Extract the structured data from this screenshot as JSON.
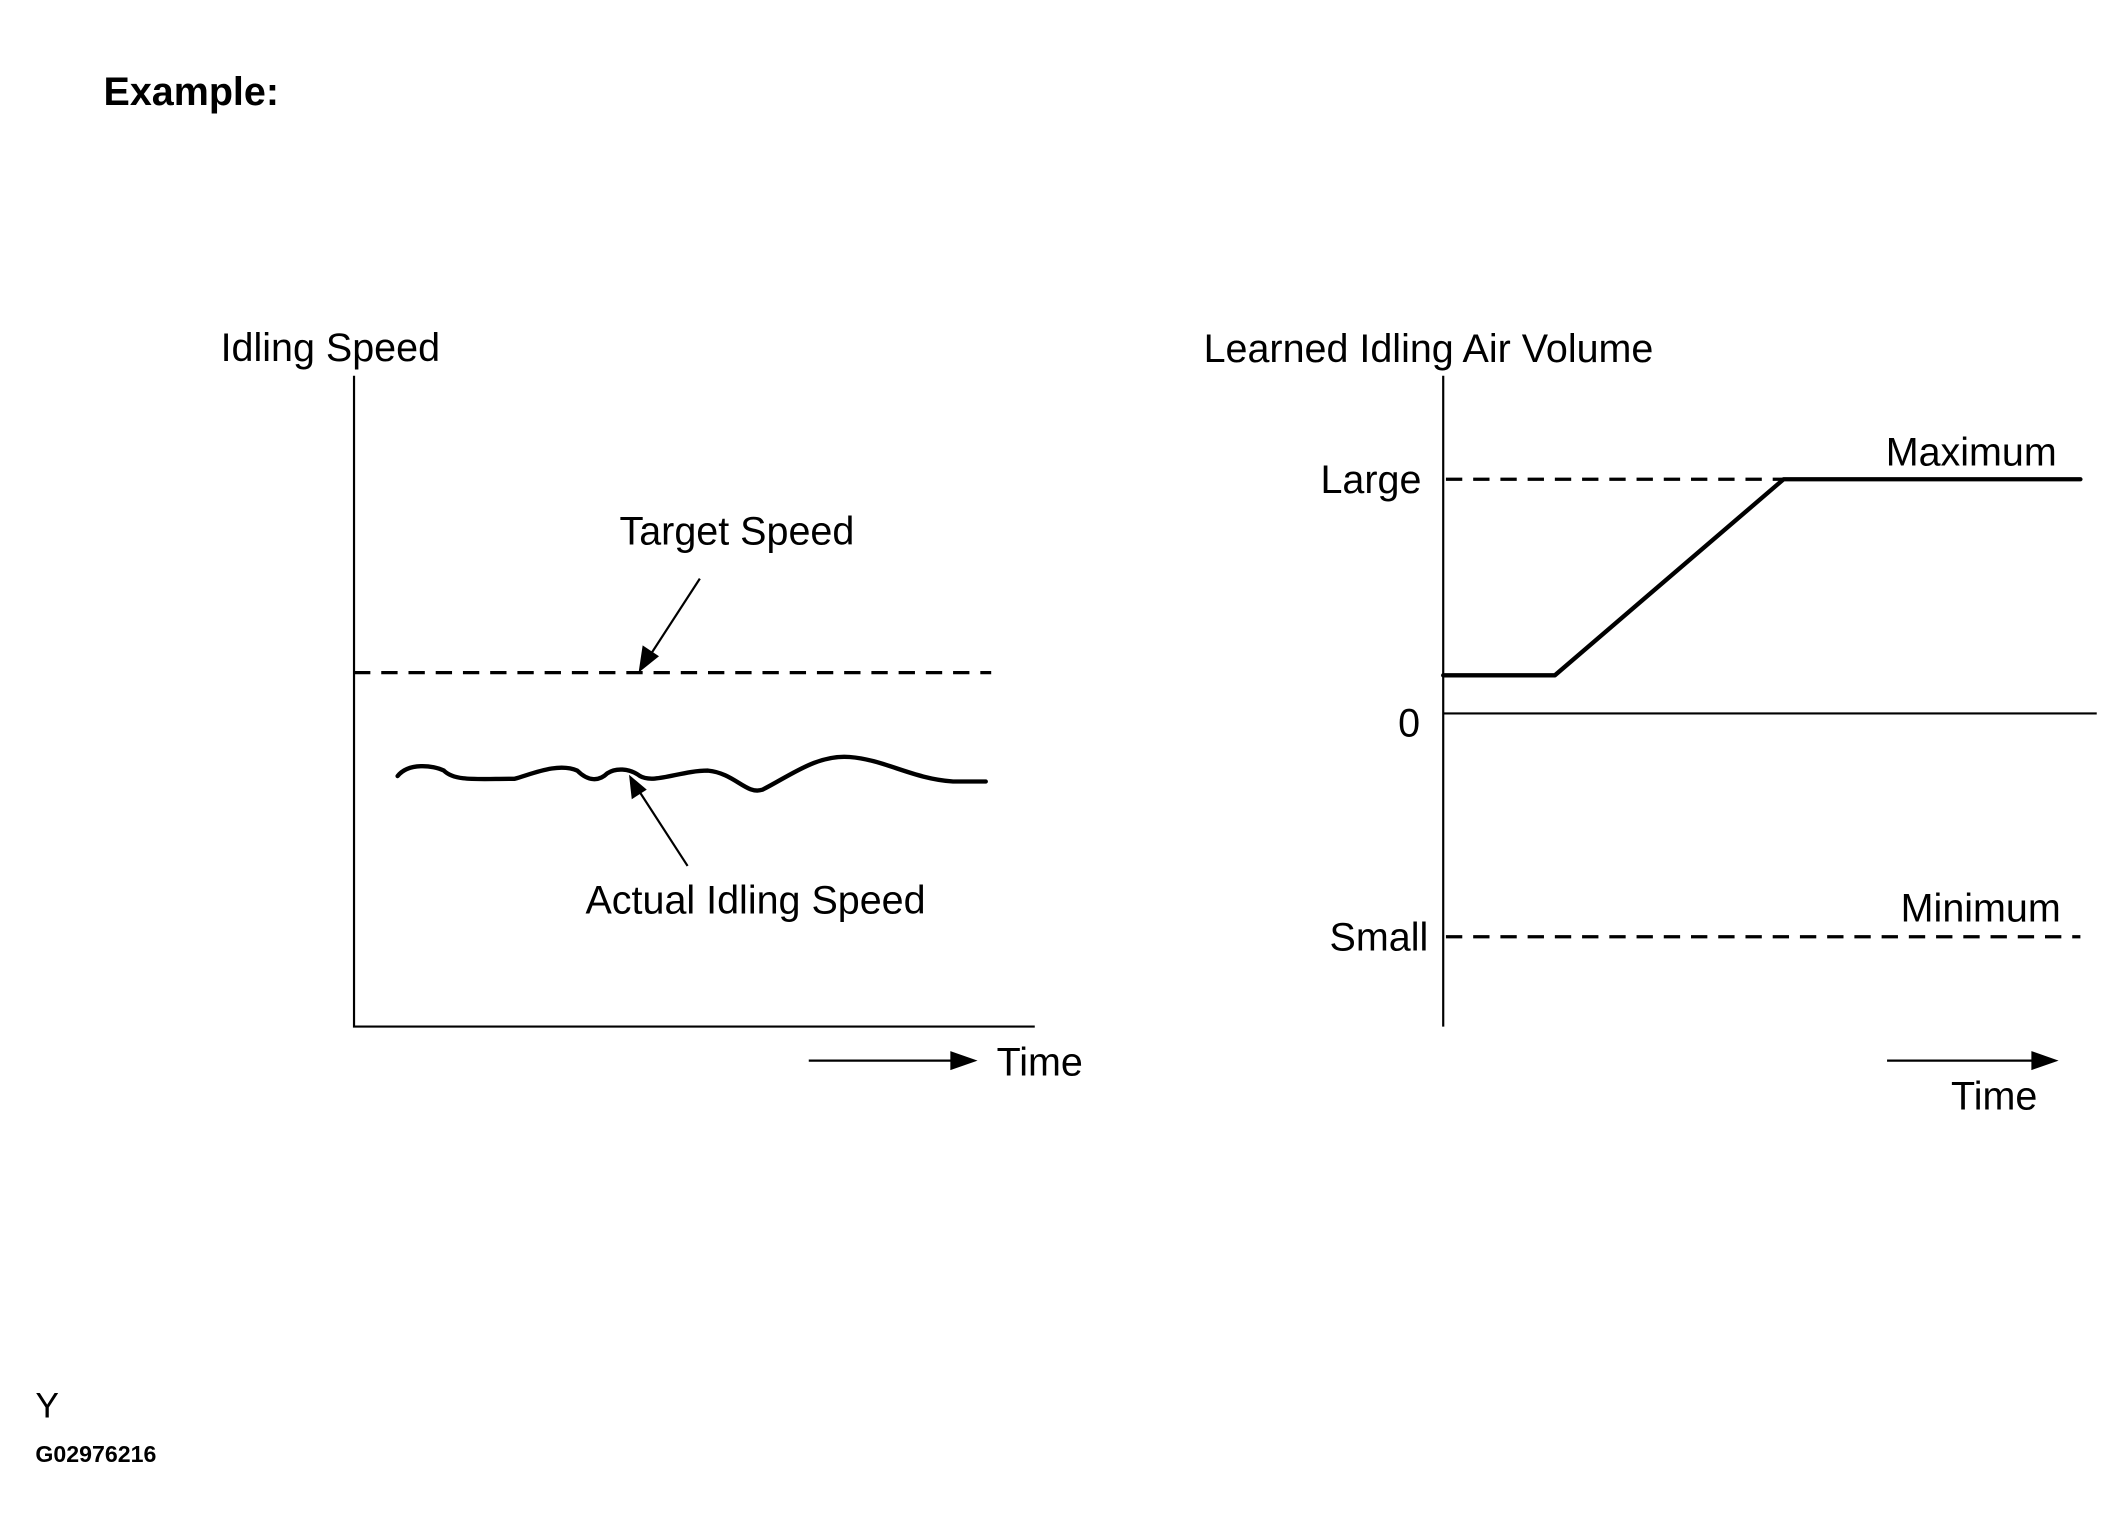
{
  "header": {
    "title": "Example:"
  },
  "left_diagram": {
    "y_axis_label": "Idling Speed",
    "target_label": "Target Speed",
    "actual_label": "Actual Idling Speed",
    "x_axis_label": "Time"
  },
  "right_diagram": {
    "y_axis_label": "Learned Idling Air Volume",
    "level_large": "Large",
    "level_zero": "0",
    "level_small": "Small",
    "maximum_label": "Maximum",
    "minimum_label": "Minimum",
    "x_axis_label": "Time"
  },
  "footer": {
    "code_letter": "Y",
    "figure_id": "G02976216"
  }
}
